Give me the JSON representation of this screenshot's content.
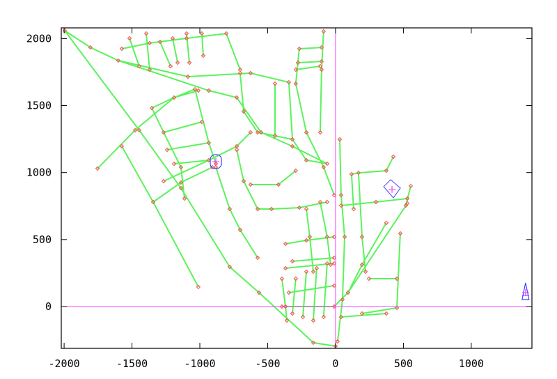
{
  "chart_data": {
    "type": "network",
    "title": "",
    "xlabel": "",
    "ylabel": "",
    "xlim": [
      -2021,
      1447
    ],
    "ylim": [
      -312,
      2080
    ],
    "x_ticks": [
      -2000,
      -1500,
      -1000,
      -500,
      0,
      500,
      1000
    ],
    "y_ticks": [
      0,
      500,
      1000,
      1500,
      2000
    ],
    "x_tick_labels": [
      "-2000",
      "-1500",
      "-1000",
      "-500",
      "0",
      "500",
      "1000"
    ],
    "y_tick_labels": [
      "0",
      "500",
      "1000",
      "1500",
      "2000"
    ],
    "grid": false,
    "origin_axes": {
      "x": 0,
      "y": 0
    },
    "colors": {
      "pipe": "#5cf25c",
      "node": "#ff4a4a",
      "origin_lines": "#ff40ff",
      "facility_outline": "#4040ff",
      "facility_marker": "#ff40ff",
      "frame": "#000000"
    },
    "pipes": [
      [
        [
          -1996,
          2059
        ],
        [
          -1447,
          1316
        ],
        [
          -1139,
          884
        ],
        [
          -780,
          296
        ],
        [
          -564,
          104
        ],
        [
          -164,
          -270
        ],
        [
          0,
          -296
        ]
      ],
      [
        [
          -1575,
          1196
        ],
        [
          -1344,
          780
        ],
        [
          -1011,
          146
        ]
      ],
      [
        [
          -1996,
          2059
        ],
        [
          -1806,
          1934
        ],
        [
          -1601,
          1836
        ],
        [
          -1088,
          1716
        ],
        [
          -626,
          1742
        ],
        [
          -344,
          1674
        ]
      ],
      [
        [
          -1601,
          1836
        ],
        [
          -934,
          1612
        ],
        [
          -728,
          1560
        ],
        [
          -549,
          1300
        ],
        [
          -318,
          1196
        ],
        [
          -62,
          1066
        ]
      ],
      [
        [
          -1754,
          1030
        ],
        [
          -1477,
          1316
        ],
        [
          -1190,
          1560
        ],
        [
          -1011,
          1612
        ]
      ],
      [
        [
          -1267,
          936
        ],
        [
          -934,
          1092
        ],
        [
          -728,
          1196
        ],
        [
          -626,
          1300
        ]
      ],
      [
        [
          -1344,
          780
        ],
        [
          -1139,
          926
        ],
        [
          -908,
          1040
        ]
      ],
      [
        [
          -1575,
          1924
        ],
        [
          -1370,
          1966
        ],
        [
          -1098,
          2002
        ],
        [
          -805,
          2038
        ]
      ],
      [
        [
          -1518,
          2002
        ],
        [
          -1447,
          1794
        ]
      ],
      [
        [
          -1395,
          2038
        ],
        [
          -1370,
          1768
        ]
      ],
      [
        [
          -1293,
          1976
        ],
        [
          -1216,
          1794
        ]
      ],
      [
        [
          -1200,
          2002
        ],
        [
          -1164,
          1820
        ]
      ],
      [
        [
          -1098,
          2038
        ],
        [
          -1077,
          1820
        ]
      ],
      [
        [
          -985,
          2038
        ],
        [
          -975,
          1872
        ]
      ],
      [
        [
          -805,
          2038
        ],
        [
          -703,
          1768
        ]
      ],
      [
        [
          -1354,
          1482
        ],
        [
          -1267,
          1300
        ],
        [
          -1139,
          1040
        ],
        [
          -1113,
          806
        ]
      ],
      [
        [
          -1354,
          1482
        ],
        [
          -1190,
          1560
        ],
        [
          -1036,
          1622
        ]
      ],
      [
        [
          -1267,
          1300
        ],
        [
          -985,
          1378
        ]
      ],
      [
        [
          -1241,
          1170
        ],
        [
          -934,
          1222
        ]
      ],
      [
        [
          -1190,
          1066
        ],
        [
          -934,
          1092
        ]
      ],
      [
        [
          -1036,
          1622
        ],
        [
          -934,
          1222
        ],
        [
          -882,
          1066
        ]
      ],
      [
        [
          -882,
          1040
        ],
        [
          -780,
          728
        ],
        [
          -703,
          572
        ],
        [
          -574,
          364
        ]
      ],
      [
        [
          -728,
          1170
        ],
        [
          -677,
          936
        ],
        [
          -574,
          728
        ],
        [
          -472,
          728
        ],
        [
          -267,
          738
        ],
        [
          -62,
          780
        ]
      ],
      [
        [
          -626,
          910
        ],
        [
          -421,
          910
        ],
        [
          -293,
          1014
        ]
      ],
      [
        [
          -703,
          1742
        ],
        [
          -677,
          1456
        ],
        [
          -574,
          1300
        ],
        [
          -318,
          1248
        ]
      ],
      [
        [
          -446,
          1664
        ],
        [
          -446,
          1274
        ]
      ],
      [
        [
          -344,
          1674
        ],
        [
          -318,
          1248
        ]
      ],
      [
        [
          -267,
          1924
        ],
        [
          -293,
          1664
        ],
        [
          -215,
          1300
        ],
        [
          -88,
          1040
        ],
        [
          -10,
          832
        ]
      ],
      [
        [
          -88,
          2054
        ],
        [
          -103,
          1768
        ],
        [
          -113,
          1300
        ]
      ],
      [
        [
          -267,
          1924
        ],
        [
          -103,
          1934
        ]
      ],
      [
        [
          -277,
          1820
        ],
        [
          -103,
          1830
        ]
      ],
      [
        [
          -293,
          1768
        ],
        [
          -113,
          1794
        ]
      ],
      [
        [
          -318,
          1248
        ],
        [
          -215,
          1092
        ],
        [
          -62,
          1066
        ]
      ],
      [
        [
          31,
          1248
        ],
        [
          41,
          832
        ],
        [
          67,
          520
        ],
        [
          51,
          52
        ],
        [
          15,
          -260
        ]
      ],
      [
        [
          118,
          988
        ],
        [
          169,
          998
        ],
        [
          374,
          1014
        ],
        [
          426,
          1118
        ]
      ],
      [
        [
          41,
          754
        ],
        [
          298,
          780
        ],
        [
          529,
          806
        ]
      ],
      [
        [
          169,
          998
        ],
        [
          195,
          520
        ],
        [
          221,
          260
        ]
      ],
      [
        [
          118,
          988
        ],
        [
          133,
          728
        ]
      ],
      [
        [
          518,
          754
        ],
        [
          554,
          900
        ]
      ],
      [
        [
          374,
          624
        ],
        [
          195,
          312
        ],
        [
          92,
          104
        ]
      ],
      [
        [
          477,
          546
        ],
        [
          452,
          -10
        ],
        [
          195,
          -52
        ]
      ],
      [
        [
          529,
          770
        ],
        [
          92,
          104
        ],
        [
          -10,
          0
        ]
      ],
      [
        [
          246,
          208
        ],
        [
          452,
          208
        ]
      ],
      [
        [
          -395,
          208
        ],
        [
          -369,
          0
        ],
        [
          -359,
          -104
        ]
      ],
      [
        [
          -318,
          338
        ],
        [
          -10,
          364
        ]
      ],
      [
        [
          -369,
          286
        ],
        [
          -10,
          322
        ]
      ],
      [
        [
          -344,
          104
        ],
        [
          -10,
          156
        ]
      ],
      [
        [
          -395,
          0
        ],
        [
          -10,
          0
        ]
      ],
      [
        [
          -293,
          208
        ],
        [
          -318,
          -52
        ]
      ],
      [
        [
          -215,
          260
        ],
        [
          -241,
          -78
        ]
      ],
      [
        [
          -139,
          286
        ],
        [
          -164,
          -104
        ]
      ],
      [
        [
          -62,
          322
        ],
        [
          -88,
          -78
        ]
      ],
      [
        [
          -369,
          468
        ],
        [
          -215,
          494
        ],
        [
          -10,
          520
        ]
      ],
      [
        [
          -215,
          728
        ],
        [
          -190,
          520
        ],
        [
          -164,
          260
        ]
      ],
      [
        [
          -113,
          780
        ],
        [
          -62,
          520
        ],
        [
          -36,
          312
        ]
      ],
      [
        [
          41,
          -78
        ],
        [
          374,
          -52
        ]
      ]
    ],
    "facilities": [
      {
        "kind": "reservoir",
        "at": [
          -882,
          1082
        ]
      },
      {
        "kind": "tank",
        "at": [
          416,
          874
        ]
      },
      {
        "kind": "tank",
        "at": [
          1400,
          104
        ]
      }
    ]
  }
}
